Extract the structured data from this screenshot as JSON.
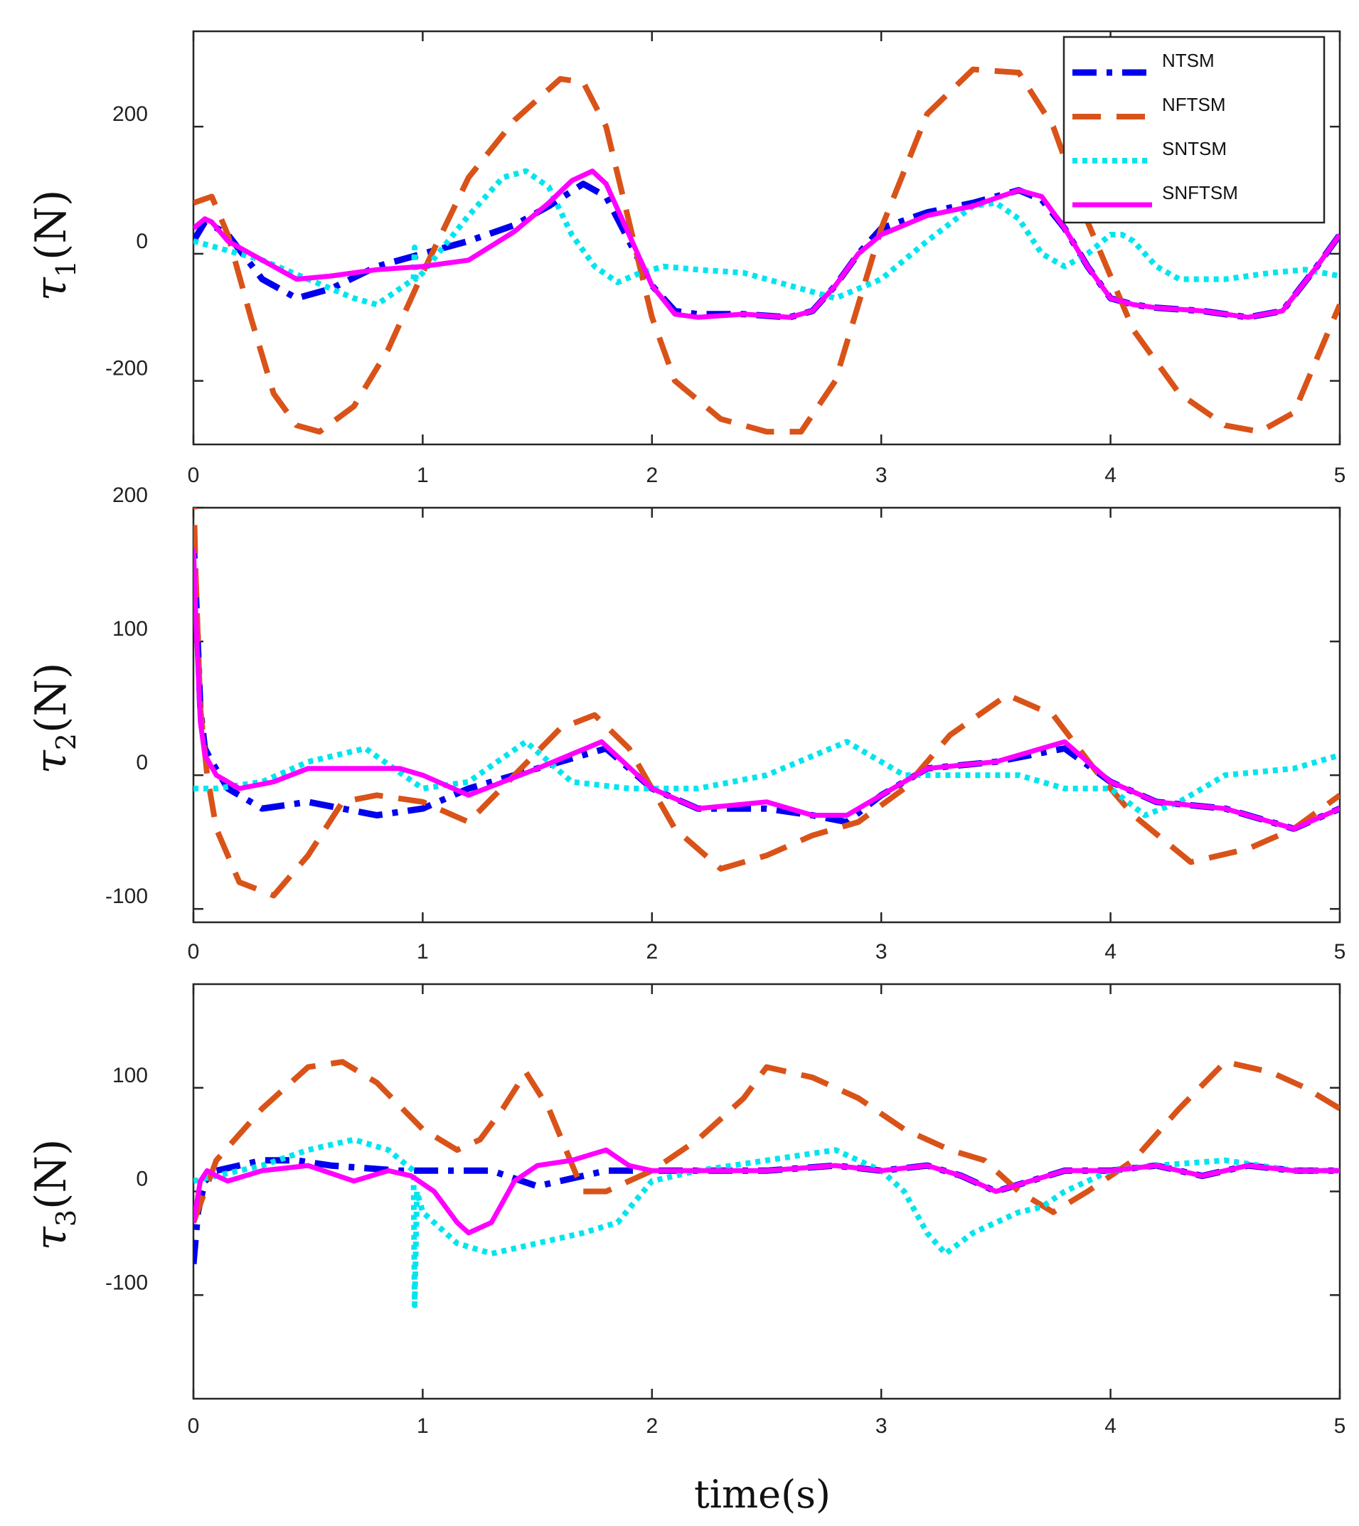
{
  "chart_data": [
    {
      "type": "line",
      "ylabel": {
        "symbol": "τ",
        "sub": "1",
        "unit": "(N)"
      },
      "xlim": [
        0,
        5
      ],
      "ylim": [
        -300,
        350
      ],
      "xticks": [
        0,
        1,
        2,
        3,
        4,
        5
      ],
      "xtick_labels": [
        "0",
        "1",
        "2",
        "3",
        "4",
        "5"
      ],
      "yticks": [
        -200,
        0,
        200
      ],
      "ytick_labels": [
        "-200",
        "0",
        "200"
      ],
      "legend": {
        "placement": "top-right",
        "entries": [
          "NTSM",
          "NFTSM",
          "SNTSM",
          "SNFTSM"
        ]
      },
      "series": [
        {
          "name": "NTSM",
          "color": "#0000ee",
          "style": "dashdot",
          "x": [
            0,
            0.05,
            0.08,
            0.15,
            0.3,
            0.45,
            0.6,
            0.8,
            1.0,
            1.2,
            1.4,
            1.55,
            1.7,
            1.8,
            1.9,
            2.0,
            2.1,
            2.2,
            2.4,
            2.6,
            2.7,
            2.8,
            2.9,
            3.0,
            3.2,
            3.4,
            3.6,
            3.7,
            3.8,
            3.9,
            4.0,
            4.1,
            4.2,
            4.4,
            4.6,
            4.75,
            4.9,
            5.0
          ],
          "y": [
            20,
            50,
            45,
            30,
            -40,
            -70,
            -55,
            -20,
            0,
            20,
            45,
            75,
            110,
            90,
            20,
            -50,
            -90,
            -95,
            -95,
            -100,
            -90,
            -50,
            0,
            40,
            65,
            80,
            100,
            85,
            40,
            -20,
            -70,
            -80,
            -85,
            -90,
            -100,
            -90,
            -20,
            30
          ]
        },
        {
          "name": "NFTSM",
          "color": "#d95319",
          "style": "dashed",
          "x": [
            0,
            0.08,
            0.15,
            0.25,
            0.35,
            0.45,
            0.55,
            0.7,
            0.85,
            1.0,
            1.2,
            1.4,
            1.6,
            1.7,
            1.8,
            1.9,
            2.0,
            2.1,
            2.3,
            2.5,
            2.65,
            2.8,
            3.0,
            3.2,
            3.4,
            3.6,
            3.75,
            3.9,
            4.1,
            4.3,
            4.5,
            4.65,
            4.8,
            5.0
          ],
          "y": [
            80,
            90,
            30,
            -100,
            -220,
            -270,
            -280,
            -240,
            -150,
            -30,
            120,
            210,
            275,
            270,
            200,
            50,
            -100,
            -200,
            -260,
            -280,
            -280,
            -200,
            40,
            220,
            290,
            285,
            200,
            50,
            -120,
            -220,
            -270,
            -280,
            -250,
            -80
          ]
        },
        {
          "name": "SNTSM",
          "color": "#00e5ee",
          "style": "dotted",
          "x": [
            0,
            0.1,
            0.3,
            0.5,
            0.7,
            0.8,
            0.96,
            0.965,
            0.97,
            1.0,
            1.2,
            1.35,
            1.45,
            1.55,
            1.65,
            1.75,
            1.85,
            1.95,
            2.05,
            2.2,
            2.4,
            2.6,
            2.8,
            3.0,
            3.2,
            3.4,
            3.5,
            3.6,
            3.7,
            3.8,
            3.9,
            4.0,
            4.05,
            4.1,
            4.2,
            4.3,
            4.5,
            4.7,
            4.85,
            5.0
          ],
          "y": [
            20,
            10,
            -10,
            -40,
            -70,
            -80,
            -40,
            10,
            -40,
            -30,
            60,
            120,
            130,
            105,
            30,
            -20,
            -45,
            -30,
            -20,
            -25,
            -30,
            -50,
            -70,
            -40,
            20,
            75,
            80,
            55,
            0,
            -20,
            0,
            30,
            30,
            20,
            -20,
            -40,
            -40,
            -30,
            -25,
            -35
          ]
        },
        {
          "name": "SNFTSM",
          "color": "#ff00ff",
          "style": "solid",
          "x": [
            0,
            0.05,
            0.08,
            0.15,
            0.3,
            0.45,
            0.6,
            0.8,
            1.0,
            1.2,
            1.4,
            1.55,
            1.65,
            1.74,
            1.8,
            1.9,
            2.0,
            2.1,
            2.2,
            2.4,
            2.6,
            2.7,
            2.8,
            2.9,
            3.0,
            3.2,
            3.4,
            3.6,
            3.7,
            3.8,
            3.9,
            4.0,
            4.1,
            4.2,
            4.4,
            4.6,
            4.75,
            4.9,
            5.0
          ],
          "y": [
            40,
            55,
            50,
            20,
            -10,
            -40,
            -35,
            -25,
            -20,
            -10,
            35,
            80,
            115,
            130,
            110,
            30,
            -50,
            -95,
            -100,
            -95,
            -100,
            -90,
            -50,
            0,
            30,
            60,
            75,
            100,
            90,
            40,
            -20,
            -70,
            -80,
            -85,
            -90,
            -100,
            -90,
            -20,
            30
          ]
        }
      ]
    },
    {
      "type": "line",
      "ylabel": {
        "symbol": "τ",
        "sub": "2",
        "unit": "(N)"
      },
      "xlim": [
        0,
        5
      ],
      "ylim": [
        -110,
        200
      ],
      "xticks": [
        0,
        1,
        2,
        3,
        4,
        5
      ],
      "xtick_labels": [
        "0",
        "1",
        "2",
        "3",
        "4",
        "5"
      ],
      "yticks": [
        -100,
        0,
        100,
        200
      ],
      "ytick_labels": [
        "-100",
        "0",
        "100",
        "200"
      ],
      "series": [
        {
          "name": "NTSM",
          "color": "#0000ee",
          "style": "dashdot",
          "x": [
            0,
            0.01,
            0.03,
            0.05,
            0.08,
            0.15,
            0.3,
            0.5,
            0.8,
            1.0,
            1.2,
            1.5,
            1.8,
            2.0,
            2.2,
            2.5,
            2.7,
            2.85,
            3.0,
            3.2,
            3.5,
            3.8,
            4.0,
            4.2,
            4.5,
            4.8,
            5.0
          ],
          "y": [
            180,
            140,
            50,
            20,
            10,
            -10,
            -25,
            -20,
            -30,
            -25,
            -10,
            5,
            20,
            -10,
            -25,
            -25,
            -30,
            -35,
            -15,
            5,
            10,
            20,
            -5,
            -20,
            -25,
            -40,
            -25
          ]
        },
        {
          "name": "NFTSM",
          "color": "#d95319",
          "style": "dashed",
          "x": [
            0,
            0.01,
            0.03,
            0.06,
            0.1,
            0.2,
            0.35,
            0.5,
            0.65,
            0.8,
            1.0,
            1.2,
            1.4,
            1.6,
            1.75,
            1.9,
            2.1,
            2.3,
            2.5,
            2.7,
            2.9,
            3.1,
            3.3,
            3.55,
            3.75,
            3.95,
            4.1,
            4.35,
            4.6,
            4.8,
            5.0
          ],
          "y": [
            220,
            150,
            50,
            0,
            -40,
            -80,
            -90,
            -60,
            -20,
            -15,
            -20,
            -35,
            0,
            35,
            45,
            20,
            -40,
            -70,
            -60,
            -45,
            -35,
            -10,
            30,
            60,
            45,
            0,
            -30,
            -65,
            -55,
            -40,
            -15
          ]
        },
        {
          "name": "SNTSM",
          "color": "#00e5ee",
          "style": "dotted",
          "x": [
            0,
            0.1,
            0.3,
            0.5,
            0.75,
            1.0,
            1.2,
            1.45,
            1.65,
            1.9,
            2.2,
            2.5,
            2.85,
            3.1,
            3.4,
            3.6,
            3.8,
            4.0,
            4.15,
            4.3,
            4.5,
            4.8,
            5.0
          ],
          "y": [
            -10,
            -10,
            -5,
            10,
            20,
            -10,
            -5,
            25,
            -5,
            -10,
            -10,
            0,
            25,
            0,
            0,
            0,
            -10,
            -10,
            -30,
            -20,
            0,
            5,
            15
          ]
        },
        {
          "name": "SNFTSM",
          "color": "#ff00ff",
          "style": "solid",
          "x": [
            0,
            0.01,
            0.03,
            0.05,
            0.1,
            0.2,
            0.35,
            0.5,
            0.7,
            0.9,
            1.0,
            1.2,
            1.5,
            1.78,
            2.0,
            2.2,
            2.5,
            2.7,
            2.85,
            3.0,
            3.2,
            3.5,
            3.8,
            4.0,
            4.2,
            4.5,
            4.8,
            5.0
          ],
          "y": [
            170,
            120,
            40,
            15,
            0,
            -10,
            -5,
            5,
            5,
            5,
            0,
            -15,
            5,
            25,
            -10,
            -25,
            -20,
            -30,
            -30,
            -15,
            5,
            10,
            25,
            -5,
            -20,
            -25,
            -40,
            -25
          ]
        }
      ]
    },
    {
      "type": "line",
      "ylabel": {
        "symbol": "τ",
        "sub": "3",
        "unit": "(N)"
      },
      "xlim": [
        0,
        5
      ],
      "ylim": [
        -200,
        200
      ],
      "xticks": [
        0,
        1,
        2,
        3,
        4,
        5
      ],
      "xtick_labels": [
        "0",
        "1",
        "2",
        "3",
        "4",
        "5"
      ],
      "yticks": [
        -100,
        0,
        100
      ],
      "ytick_labels": [
        "-100",
        "0",
        "100"
      ],
      "series": [
        {
          "name": "NTSM",
          "color": "#0000ee",
          "style": "dashdot",
          "x": [
            0,
            0.02,
            0.05,
            0.1,
            0.3,
            0.45,
            0.6,
            0.9,
            1.1,
            1.3,
            1.5,
            1.6,
            1.8,
            2.0,
            2.3,
            2.5,
            2.8,
            3.0,
            3.2,
            3.35,
            3.5,
            3.65,
            3.8,
            4.0,
            4.2,
            4.4,
            4.6,
            4.8,
            5.0
          ],
          "y": [
            -70,
            -20,
            10,
            20,
            30,
            30,
            25,
            20,
            20,
            20,
            5,
            10,
            20,
            20,
            20,
            20,
            25,
            20,
            25,
            15,
            0,
            10,
            20,
            20,
            25,
            15,
            25,
            20,
            20
          ]
        },
        {
          "name": "NFTSM",
          "color": "#d95319",
          "style": "dashed",
          "x": [
            0,
            0.1,
            0.3,
            0.5,
            0.65,
            0.8,
            1.0,
            1.15,
            1.25,
            1.35,
            1.45,
            1.55,
            1.7,
            1.8,
            2.0,
            2.2,
            2.4,
            2.5,
            2.7,
            2.9,
            3.1,
            3.3,
            3.45,
            3.6,
            3.75,
            3.9,
            4.1,
            4.3,
            4.5,
            4.7,
            4.85,
            5.0
          ],
          "y": [
            -30,
            30,
            80,
            120,
            125,
            105,
            60,
            40,
            50,
            80,
            115,
            80,
            0,
            0,
            20,
            50,
            90,
            120,
            110,
            90,
            60,
            40,
            30,
            0,
            -20,
            0,
            30,
            80,
            125,
            115,
            100,
            80
          ]
        },
        {
          "name": "SNTSM",
          "color": "#00e5ee",
          "style": "dotted",
          "x": [
            0,
            0.1,
            0.3,
            0.5,
            0.7,
            0.85,
            0.96,
            0.965,
            0.975,
            1.0,
            1.15,
            1.3,
            1.5,
            1.7,
            1.85,
            2.0,
            2.2,
            2.5,
            2.8,
            3.0,
            3.1,
            3.2,
            3.28,
            3.4,
            3.6,
            3.7,
            3.8,
            4.0,
            4.2,
            4.5,
            4.8,
            5.0
          ],
          "y": [
            10,
            15,
            25,
            40,
            50,
            40,
            20,
            -110,
            0,
            -20,
            -50,
            -60,
            -50,
            -40,
            -30,
            10,
            20,
            30,
            40,
            20,
            0,
            -40,
            -60,
            -40,
            -20,
            -15,
            0,
            20,
            25,
            30,
            20,
            20
          ]
        },
        {
          "name": "SNFTSM",
          "color": "#ff00ff",
          "style": "solid",
          "x": [
            0,
            0.03,
            0.06,
            0.1,
            0.15,
            0.3,
            0.5,
            0.7,
            0.85,
            0.95,
            1.05,
            1.15,
            1.2,
            1.3,
            1.4,
            1.5,
            1.65,
            1.8,
            1.9,
            2.0,
            2.3,
            2.5,
            2.8,
            3.0,
            3.2,
            3.35,
            3.5,
            3.65,
            3.8,
            4.0,
            4.2,
            4.4,
            4.6,
            4.8,
            5.0
          ],
          "y": [
            -30,
            10,
            20,
            15,
            10,
            20,
            25,
            10,
            20,
            15,
            0,
            -30,
            -40,
            -30,
            10,
            25,
            30,
            40,
            25,
            20,
            20,
            20,
            25,
            20,
            25,
            15,
            0,
            10,
            20,
            20,
            25,
            15,
            25,
            20,
            20
          ]
        }
      ]
    }
  ],
  "figure": {
    "xlabel": "time(s)"
  }
}
